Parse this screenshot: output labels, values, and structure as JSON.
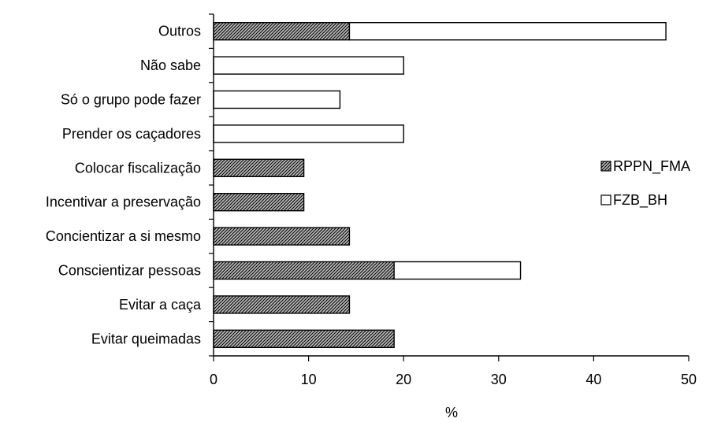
{
  "chart_data": {
    "type": "bar",
    "orientation": "horizontal",
    "stacked": true,
    "categories": [
      "Outros",
      "Não sabe",
      "Só o grupo pode fazer",
      "Prender os caçadores",
      "Colocar fiscalização",
      "Incentivar a preservação",
      "Concientizar a si mesmo",
      "Conscientizar pessoas",
      "Evitar a caça",
      "Evitar queimadas"
    ],
    "series": [
      {
        "name": "RPPN_FMA",
        "values": [
          14.3,
          0,
          0,
          0,
          9.5,
          9.5,
          14.3,
          19.0,
          14.3,
          19.0
        ],
        "color": "#555555",
        "pattern": "crosshatch"
      },
      {
        "name": "FZB_BH",
        "values": [
          33.3,
          20.0,
          13.3,
          20.0,
          0,
          0,
          0,
          13.3,
          0,
          0
        ],
        "color": "#ffffff",
        "pattern": "none"
      }
    ],
    "xlabel": "%",
    "ylabel": "",
    "title": "",
    "xlim": [
      0,
      50
    ],
    "xticks": [
      0,
      10,
      20,
      30,
      40,
      50
    ],
    "grid": false,
    "legend_position": "right"
  }
}
